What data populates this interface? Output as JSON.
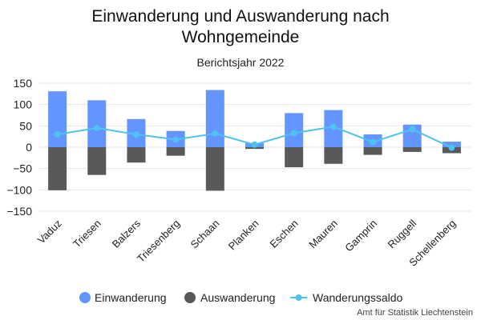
{
  "chart_data": {
    "type": "bar",
    "title_lines": [
      "Einwanderung und Auswanderung nach",
      "Wohngemeinde"
    ],
    "subtitle": "Berichtsjahr 2022",
    "categories": [
      "Vaduz",
      "Triesen",
      "Balzers",
      "Triesenberg",
      "Schaan",
      "Planken",
      "Eschen",
      "Mauren",
      "Gamprin",
      "Ruggell",
      "Schellenberg"
    ],
    "series": [
      {
        "name": "Einwanderung",
        "kind": "bar",
        "color": "#6495ff",
        "values": [
          131,
          110,
          66,
          38,
          134,
          10,
          80,
          87,
          30,
          53,
          13
        ]
      },
      {
        "name": "Auswanderung",
        "kind": "bar",
        "color": "#595959",
        "values": [
          -101,
          -65,
          -36,
          -20,
          -102,
          -4,
          -47,
          -39,
          -18,
          -11,
          -14
        ]
      },
      {
        "name": "Wanderungssaldo",
        "kind": "line",
        "color": "#4ec3f0",
        "values": [
          30,
          45,
          30,
          18,
          32,
          6,
          33,
          48,
          12,
          42,
          -1
        ]
      }
    ],
    "ylim": [
      -150,
      150
    ],
    "yticks": [
      -150,
      -100,
      -50,
      0,
      50,
      100,
      150
    ],
    "grid": true,
    "legend_position": "bottom",
    "credit": "Amt für Statistik Liechtenstein"
  }
}
